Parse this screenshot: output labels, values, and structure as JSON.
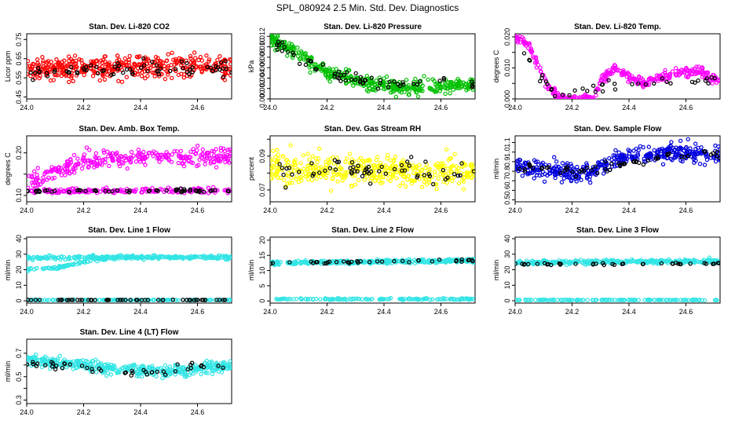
{
  "figure": {
    "title": "SPL_080924  2.5 Min. Std. Dev. Diagnostics"
  },
  "chart_data": [
    {
      "type": "scatter",
      "title": "Stan. Dev. Li-820 CO2",
      "ylabel": "Licor ppm",
      "xlim": [
        24.0,
        24.72
      ],
      "ylim": [
        0.44,
        0.78
      ],
      "xticks": [
        24.0,
        24.2,
        24.4,
        24.6
      ],
      "xtick_labels": [
        "24.0",
        "24.2",
        "24.4",
        "24.6"
      ],
      "yticks": [
        0.45,
        0.55,
        0.65,
        0.75
      ],
      "ytick_labels": [
        "0.45",
        "0.55",
        "0.65",
        "0.75"
      ],
      "series": [
        {
          "name": "all",
          "color": "#ff0000",
          "trend": [
            [
              24.0,
              0.59
            ],
            [
              24.2,
              0.6
            ],
            [
              24.4,
              0.61
            ],
            [
              24.72,
              0.61
            ]
          ],
          "spread": 0.06,
          "count": 420
        },
        {
          "name": "block",
          "color": "#000000",
          "trend": [
            [
              24.0,
              0.58
            ],
            [
              24.72,
              0.6
            ]
          ],
          "spread": 0.04,
          "count": 70
        }
      ]
    },
    {
      "type": "scatter",
      "title": "Stan. Dev. Li-820 Pressure",
      "ylabel": "kPa",
      "xlim": [
        24.0,
        24.72
      ],
      "ylim": [
        0.0,
        0.0125
      ],
      "xticks": [
        24.0,
        24.2,
        24.4,
        24.6
      ],
      "xtick_labels": [
        "24.0",
        "24.2",
        "24.4",
        "24.6"
      ],
      "yticks": [
        0.0,
        0.002,
        0.004,
        0.006,
        0.008,
        0.01,
        0.012
      ],
      "ytick_labels": [
        "0.000",
        "0.002",
        "0.004",
        "0.006",
        "0.008",
        "0.010",
        "0.012"
      ],
      "series": [
        {
          "name": "all",
          "color": "#00c000",
          "trend": [
            [
              24.0,
              0.0115
            ],
            [
              24.1,
              0.009
            ],
            [
              24.2,
              0.005
            ],
            [
              24.35,
              0.003
            ],
            [
              24.5,
              0.002
            ],
            [
              24.72,
              0.003
            ]
          ],
          "spread": 0.0015,
          "count": 420
        },
        {
          "name": "block",
          "color": "#000000",
          "trend": [
            [
              24.0,
              0.0112
            ],
            [
              24.2,
              0.005
            ],
            [
              24.4,
              0.003
            ],
            [
              24.72,
              0.003
            ]
          ],
          "spread": 0.0012,
          "count": 60
        }
      ]
    },
    {
      "type": "scatter",
      "title": "Stan. Dev. Li-820 Temp.",
      "ylabel": "degrees C",
      "xlim": [
        24.0,
        24.72
      ],
      "ylim": [
        0.0,
        0.021
      ],
      "xticks": [
        24.0,
        24.2,
        24.4,
        24.6
      ],
      "xtick_labels": [
        "24.0",
        "24.2",
        "24.4",
        "24.6"
      ],
      "yticks": [
        0.0,
        0.005,
        0.01,
        0.015,
        0.02
      ],
      "ytick_labels": [
        "0.000",
        "",
        "0.010",
        "",
        "0.020"
      ],
      "series": [
        {
          "name": "all",
          "color": "#ff00ff",
          "trend": [
            [
              24.0,
              0.02
            ],
            [
              24.05,
              0.017
            ],
            [
              24.12,
              0.003
            ],
            [
              24.16,
              0.0
            ],
            [
              24.28,
              0.0
            ],
            [
              24.3,
              0.006
            ],
            [
              24.35,
              0.01
            ],
            [
              24.4,
              0.007
            ],
            [
              24.45,
              0.005
            ],
            [
              24.55,
              0.008
            ],
            [
              24.65,
              0.009
            ],
            [
              24.72,
              0.005
            ]
          ],
          "spread": 0.0015,
          "count": 360
        },
        {
          "name": "block",
          "color": "#000000",
          "trend": [
            [
              24.0,
              0.018
            ],
            [
              24.15,
              0.0
            ],
            [
              24.3,
              0.004
            ],
            [
              24.72,
              0.007
            ]
          ],
          "spread": 0.002,
          "count": 40
        }
      ]
    },
    {
      "type": "scatter",
      "title": "Stan. Dev. Amb. Box Temp.",
      "ylabel": "degrees C",
      "xlim": [
        24.0,
        24.72
      ],
      "ylim": [
        0.085,
        0.24
      ],
      "xticks": [
        24.0,
        24.2,
        24.4,
        24.6
      ],
      "xtick_labels": [
        "24.0",
        "24.2",
        "24.4",
        "24.6"
      ],
      "yticks": [
        0.1,
        0.15,
        0.2
      ],
      "ytick_labels": [
        "0.10",
        "",
        "0.20"
      ],
      "series": [
        {
          "name": "upper",
          "color": "#ff00ff",
          "trend": [
            [
              24.0,
              0.13
            ],
            [
              24.1,
              0.16
            ],
            [
              24.2,
              0.18
            ],
            [
              24.4,
              0.19
            ],
            [
              24.72,
              0.19
            ]
          ],
          "spread": 0.02,
          "count": 300
        },
        {
          "name": "lower",
          "color": "#ff00ff",
          "trend": [
            [
              24.0,
              0.11
            ],
            [
              24.72,
              0.112
            ]
          ],
          "spread": 0.006,
          "count": 180
        },
        {
          "name": "block",
          "color": "#000000",
          "trend": [
            [
              24.0,
              0.11
            ],
            [
              24.72,
              0.112
            ]
          ],
          "spread": 0.004,
          "count": 60
        }
      ]
    },
    {
      "type": "scatter",
      "title": "Stan. Dev. Gas Stream RH",
      "ylabel": "percent",
      "xlim": [
        24.0,
        24.72
      ],
      "ylim": [
        0.063,
        0.102
      ],
      "xticks": [
        24.0,
        24.2,
        24.4,
        24.6
      ],
      "xtick_labels": [
        "24.0",
        "24.2",
        "24.4",
        "24.6"
      ],
      "yticks": [
        0.07,
        0.08,
        0.09,
        0.1
      ],
      "ytick_labels": [
        "0.07",
        "",
        "0.09",
        ""
      ],
      "series": [
        {
          "name": "all",
          "color": "#ffff00",
          "trend": [
            [
              24.0,
              0.083
            ],
            [
              24.72,
              0.08
            ]
          ],
          "spread": 0.009,
          "count": 420
        },
        {
          "name": "block",
          "color": "#000000",
          "trend": [
            [
              24.0,
              0.083
            ],
            [
              24.72,
              0.08
            ]
          ],
          "spread": 0.006,
          "count": 60
        }
      ]
    },
    {
      "type": "scatter",
      "title": "Stan. Dev. Sample Flow",
      "ylabel": "ml/min",
      "xlim": [
        24.0,
        24.72
      ],
      "ylim": [
        0.48,
        1.17
      ],
      "xticks": [
        24.0,
        24.2,
        24.4,
        24.6
      ],
      "xtick_labels": [
        "24.0",
        "24.2",
        "24.4",
        "24.6"
      ],
      "yticks": [
        0.5,
        0.6,
        0.7,
        0.8,
        0.9,
        1.0,
        1.1
      ],
      "ytick_labels": [
        "0.5",
        "0.6",
        "0.7",
        "0.8",
        "0.9",
        "1.0",
        "1.1"
      ],
      "series": [
        {
          "name": "all",
          "color": "#0000dd",
          "trend": [
            [
              24.0,
              0.85
            ],
            [
              24.15,
              0.8
            ],
            [
              24.25,
              0.78
            ],
            [
              24.4,
              0.95
            ],
            [
              24.55,
              1.0
            ],
            [
              24.72,
              0.98
            ]
          ],
          "spread": 0.09,
          "count": 420
        },
        {
          "name": "block",
          "color": "#000000",
          "trend": [
            [
              24.0,
              0.85
            ],
            [
              24.25,
              0.8
            ],
            [
              24.4,
              0.9
            ],
            [
              24.72,
              1.0
            ]
          ],
          "spread": 0.06,
          "count": 60
        }
      ]
    },
    {
      "type": "scatter",
      "title": "Stan. Dev. Line 1 Flow",
      "ylabel": "ml/min",
      "xlim": [
        24.0,
        24.72
      ],
      "ylim": [
        -1.5,
        41
      ],
      "xticks": [
        24.0,
        24.2,
        24.4,
        24.6
      ],
      "xtick_labels": [
        "24.0",
        "24.2",
        "24.4",
        "24.6"
      ],
      "yticks": [
        0,
        10,
        20,
        30,
        40
      ],
      "ytick_labels": [
        "0",
        "10",
        "20",
        "30",
        "40"
      ],
      "series": [
        {
          "name": "upper",
          "color": "#33e5e5",
          "trend": [
            [
              24.0,
              27.5
            ],
            [
              24.3,
              28
            ],
            [
              24.72,
              28
            ]
          ],
          "spread": 1.2,
          "count": 280
        },
        {
          "name": "lower",
          "color": "#33e5e5",
          "trend": [
            [
              24.0,
              20
            ],
            [
              24.1,
              21
            ],
            [
              24.2,
              25
            ],
            [
              24.28,
              27
            ]
          ],
          "spread": 0.8,
          "count": 90
        },
        {
          "name": "zero",
          "color": "#33e5e5",
          "trend": [
            [
              24.0,
              0.5
            ],
            [
              24.72,
              0.5
            ]
          ],
          "spread": 0.2,
          "count": 150
        },
        {
          "name": "block",
          "color": "#000000",
          "trend": [
            [
              24.0,
              0.5
            ],
            [
              24.72,
              0.5
            ]
          ],
          "spread": 0.1,
          "count": 55
        }
      ]
    },
    {
      "type": "scatter",
      "title": "Stan. Dev. Line 2 Flow",
      "ylabel": "ml/min",
      "xlim": [
        24.0,
        24.72
      ],
      "ylim": [
        -0.7,
        21
      ],
      "xticks": [
        24.0,
        24.2,
        24.4,
        24.6
      ],
      "xtick_labels": [
        "24.0",
        "24.2",
        "24.4",
        "24.6"
      ],
      "yticks": [
        0,
        5,
        10,
        15,
        20
      ],
      "ytick_labels": [
        "0",
        "5",
        "10",
        "15",
        "20"
      ],
      "series": [
        {
          "name": "upper",
          "color": "#33e5e5",
          "trend": [
            [
              24.0,
              12.5
            ],
            [
              24.72,
              13.3
            ]
          ],
          "spread": 0.6,
          "count": 320
        },
        {
          "name": "zero",
          "color": "#33e5e5",
          "trend": [
            [
              24.0,
              0.6
            ],
            [
              24.72,
              0.6
            ]
          ],
          "spread": 0.25,
          "count": 150
        },
        {
          "name": "block",
          "color": "#000000",
          "trend": [
            [
              24.0,
              12.5
            ],
            [
              24.72,
              13.3
            ]
          ],
          "spread": 0.4,
          "count": 40
        }
      ]
    },
    {
      "type": "scatter",
      "title": "Stan. Dev. Line 3 Flow",
      "ylabel": "ml/min",
      "xlim": [
        24.0,
        24.72
      ],
      "ylim": [
        -1.5,
        41
      ],
      "xticks": [
        24.0,
        24.2,
        24.4,
        24.6
      ],
      "xtick_labels": [
        "24.0",
        "24.2",
        "24.4",
        "24.6"
      ],
      "yticks": [
        0,
        10,
        20,
        30,
        40
      ],
      "ytick_labels": [
        "0",
        "10",
        "20",
        "30",
        "40"
      ],
      "series": [
        {
          "name": "upper",
          "color": "#33e5e5",
          "trend": [
            [
              24.0,
              24.5
            ],
            [
              24.72,
              25.5
            ]
          ],
          "spread": 1.3,
          "count": 320
        },
        {
          "name": "zero",
          "color": "#33e5e5",
          "trend": [
            [
              24.0,
              0.5
            ],
            [
              24.72,
              0.5
            ]
          ],
          "spread": 0.2,
          "count": 150
        },
        {
          "name": "block",
          "color": "#000000",
          "trend": [
            [
              24.0,
              23.5
            ],
            [
              24.72,
              24
            ]
          ],
          "spread": 0.5,
          "count": 40
        }
      ]
    },
    {
      "type": "scatter",
      "title": "Stan. Dev. Line 4 (LT) Flow",
      "ylabel": "ml/min",
      "xlim": [
        24.0,
        24.72
      ],
      "ylim": [
        0.27,
        0.82
      ],
      "xticks": [
        24.0,
        24.2,
        24.4,
        24.6
      ],
      "xtick_labels": [
        "24.0",
        "24.2",
        "24.4",
        "24.6"
      ],
      "yticks": [
        0.3,
        0.4,
        0.5,
        0.6,
        0.7
      ],
      "ytick_labels": [
        "0.3",
        "",
        "0.5",
        "",
        "0.7"
      ],
      "series": [
        {
          "name": "all",
          "color": "#33e5e5",
          "trend": [
            [
              24.0,
              0.64
            ],
            [
              24.2,
              0.6
            ],
            [
              24.4,
              0.54
            ],
            [
              24.55,
              0.55
            ],
            [
              24.72,
              0.6
            ]
          ],
          "spread": 0.05,
          "count": 420
        },
        {
          "name": "block",
          "color": "#000000",
          "trend": [
            [
              24.0,
              0.62
            ],
            [
              24.2,
              0.59
            ],
            [
              24.4,
              0.53
            ],
            [
              24.72,
              0.6
            ]
          ],
          "spread": 0.035,
          "count": 45
        }
      ]
    }
  ]
}
